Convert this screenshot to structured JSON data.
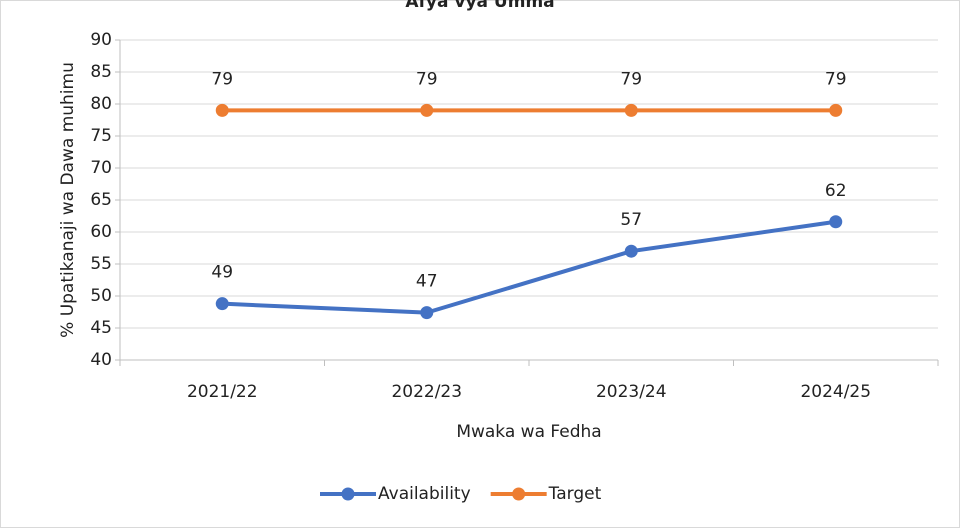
{
  "chart_data": {
    "type": "line",
    "title": "Afya vya Umma",
    "x_label": "Mwaka wa Fedha",
    "y_label": "% Upatikanaji wa Dawa muhimu",
    "categories": [
      "2021/22",
      "2022/23",
      "2023/24",
      "2024/25"
    ],
    "series": [
      {
        "name": "Availability",
        "color": "#4472c4",
        "values": [
          48.8,
          47.4,
          57,
          61.6
        ],
        "value_labels": [
          "49",
          "47",
          "57",
          "62"
        ]
      },
      {
        "name": "Target",
        "color": "#ed7d31",
        "values": [
          79,
          79,
          79,
          79
        ]
      }
    ],
    "ylim": [
      40,
      90
    ],
    "yticks": [
      40,
      45,
      50,
      55,
      60,
      65,
      70,
      75,
      80,
      85,
      90
    ],
    "grid": true,
    "legend": "bottom"
  }
}
